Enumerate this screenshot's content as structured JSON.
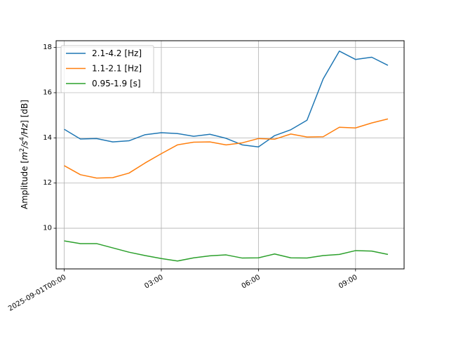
{
  "chart_data": {
    "type": "line",
    "title": "",
    "xlabel": "",
    "ylabel": "Amplitude [m²/s⁴/Hz] [dB]",
    "ylabel_parts": {
      "prefix": "Amplitude [",
      "m": "m",
      "two": "2",
      "slash1": "/",
      "s": "s",
      "four": "4",
      "slash2": "/",
      "hz": "Hz",
      "suffix": "] [dB]"
    },
    "x_unit": "hours after 2025-09-01T00:00",
    "x": [
      0,
      0.5,
      1,
      1.5,
      2,
      2.5,
      3,
      3.5,
      4,
      4.5,
      5,
      5.5,
      6,
      6.5,
      7,
      7.5,
      8,
      8.5,
      9,
      9.5,
      10
    ],
    "xlim": [
      -0.25,
      10.5
    ],
    "ylim": [
      8.2,
      18.3
    ],
    "xticks": [
      {
        "value": 0,
        "label": "2025-09-01T00:00"
      },
      {
        "value": 3,
        "label": "03:00"
      },
      {
        "value": 6,
        "label": "06:00"
      },
      {
        "value": 9,
        "label": "09:00"
      }
    ],
    "yticks": [
      {
        "value": 10,
        "label": "10"
      },
      {
        "value": 12,
        "label": "12"
      },
      {
        "value": 14,
        "label": "14"
      },
      {
        "value": 16,
        "label": "16"
      },
      {
        "value": 18,
        "label": "18"
      }
    ],
    "grid": true,
    "legend_position": "top-left",
    "series": [
      {
        "name": "2.1-4.2 [Hz]",
        "color": "#1f77b4",
        "values": [
          14.38,
          13.95,
          13.97,
          13.82,
          13.87,
          14.14,
          14.23,
          14.19,
          14.07,
          14.16,
          13.98,
          13.69,
          13.6,
          14.1,
          14.36,
          14.78,
          16.61,
          17.84,
          17.47,
          17.57,
          17.21
        ]
      },
      {
        "name": "1.1-2.1 [Hz]",
        "color": "#ff7f0e",
        "values": [
          12.77,
          12.37,
          12.22,
          12.24,
          12.44,
          12.89,
          13.3,
          13.69,
          13.81,
          13.82,
          13.69,
          13.78,
          13.97,
          13.94,
          14.17,
          14.04,
          14.05,
          14.47,
          14.44,
          14.66,
          14.84
        ]
      },
      {
        "name": "0.95-1.9 [s]",
        "color": "#2ca02c",
        "values": [
          9.44,
          9.32,
          9.32,
          9.13,
          8.94,
          8.79,
          8.66,
          8.55,
          8.69,
          8.78,
          8.82,
          8.68,
          8.69,
          8.86,
          8.69,
          8.68,
          8.79,
          8.84,
          9.01,
          8.99,
          8.84
        ]
      }
    ]
  }
}
